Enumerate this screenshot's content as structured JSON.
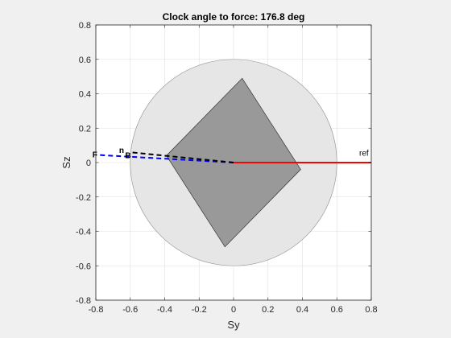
{
  "chart_data": {
    "type": "line",
    "title": "Clock angle to force: 176.8 deg",
    "xlabel": "Sy",
    "ylabel": "Sz",
    "xlim": [
      -0.8,
      0.8
    ],
    "ylim": [
      -0.8,
      0.8
    ],
    "xticks": [
      "-0.8",
      "-0.6",
      "-0.4",
      "-0.2",
      "0",
      "0.2",
      "0.4",
      "0.6",
      "0.8"
    ],
    "yticks": [
      "-0.8",
      "-0.6",
      "-0.4",
      "-0.2",
      "0",
      "0.2",
      "0.4",
      "0.6",
      "0.8"
    ],
    "grid": true,
    "colors": {
      "circle_fill": "#e6e6e6",
      "polygon_fill": "#999999",
      "ref_line": "#ff0000",
      "force_line": "#0000ff",
      "normal_line": "#000000"
    },
    "circle": {
      "center": [
        0,
        0
      ],
      "radius": 0.6
    },
    "polygon": {
      "x": [
        0.05,
        0.39,
        -0.05,
        -0.39
      ],
      "y": [
        0.49,
        -0.04,
        -0.49,
        0.04
      ]
    },
    "ref_line": {
      "label": "ref",
      "x": [
        0,
        0.8
      ],
      "y": [
        0,
        0
      ]
    },
    "force_line": {
      "label": "F",
      "x": [
        0,
        -0.8
      ],
      "y": [
        0,
        0.045
      ]
    },
    "normal_line": {
      "label": "n",
      "subscript": "B",
      "x": [
        0,
        -0.6
      ],
      "y": [
        0,
        0.06
      ]
    }
  }
}
